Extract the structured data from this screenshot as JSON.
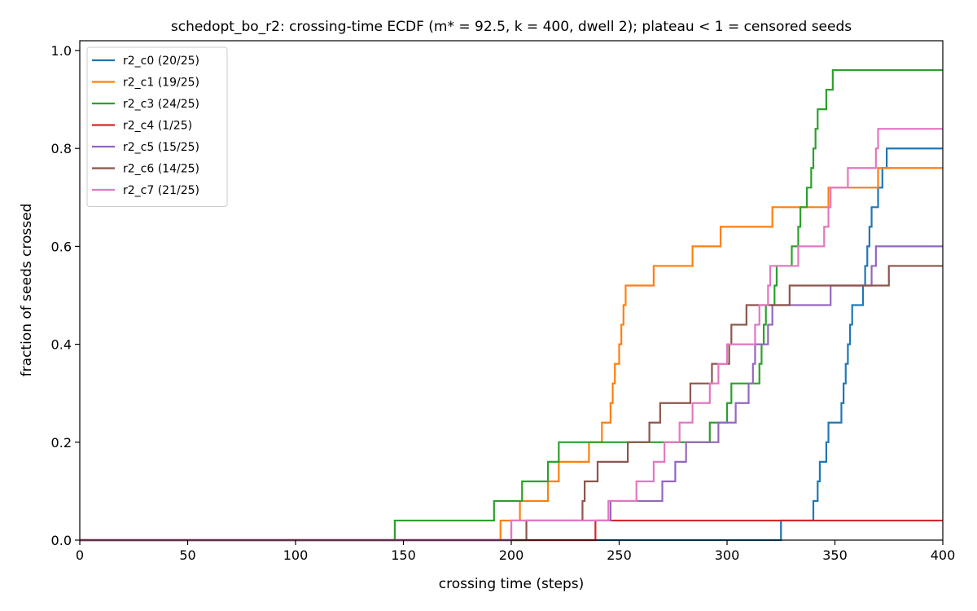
{
  "chart_data": {
    "type": "line",
    "step": true,
    "title": "schedopt_bo_r2: crossing-time ECDF (m* = 92.5, k = 400, dwell 2); plateau < 1 = censored seeds",
    "xlabel": "crossing time (steps)",
    "ylabel": "fraction of seeds crossed",
    "xlim": [
      0,
      400
    ],
    "ylim": [
      0,
      1.02
    ],
    "xticks": [
      0,
      50,
      100,
      150,
      200,
      250,
      300,
      350,
      400
    ],
    "yticks": [
      0.0,
      0.2,
      0.4,
      0.6,
      0.8,
      1.0
    ],
    "xtick_labels": [
      "0",
      "50",
      "100",
      "150",
      "200",
      "250",
      "300",
      "350",
      "400"
    ],
    "ytick_labels": [
      "0.0",
      "0.2",
      "0.4",
      "0.6",
      "0.8",
      "1.0"
    ],
    "grid": false,
    "legend_position": "top-left",
    "series": [
      {
        "name": "r2_c0 (20/25)",
        "color": "#1f77b4",
        "crossing_times": [
          325,
          340,
          342,
          343,
          346,
          347,
          353,
          354,
          355,
          356,
          357,
          358,
          363,
          364,
          365,
          366,
          367,
          370,
          372,
          374
        ]
      },
      {
        "name": "r2_c1 (19/25)",
        "color": "#ff7f0e",
        "crossing_times": [
          195,
          204,
          217,
          222,
          236,
          242,
          246,
          247,
          248,
          250,
          251,
          252,
          253,
          266,
          284,
          297,
          321,
          347,
          370
        ]
      },
      {
        "name": "r2_c3 (24/25)",
        "color": "#2ca02c",
        "crossing_times": [
          146,
          192,
          205,
          217,
          222,
          292,
          300,
          302,
          315,
          316,
          317,
          318,
          322,
          323,
          330,
          333,
          334,
          337,
          339,
          340,
          341,
          342,
          346,
          349
        ]
      },
      {
        "name": "r2_c4 (1/25)",
        "color": "#d62728",
        "crossing_times": [
          239
        ]
      },
      {
        "name": "r2_c5 (15/25)",
        "color": "#9467bd",
        "crossing_times": [
          200,
          246,
          270,
          276,
          281,
          296,
          304,
          310,
          312,
          313,
          319,
          321,
          348,
          367,
          369
        ]
      },
      {
        "name": "r2_c6 (14/25)",
        "color": "#8c564b",
        "crossing_times": [
          207,
          233,
          234,
          240,
          254,
          264,
          269,
          283,
          293,
          301,
          302,
          309,
          329,
          375
        ]
      },
      {
        "name": "r2_c7 (21/25)",
        "color": "#e377c2",
        "crossing_times": [
          200,
          245,
          258,
          266,
          271,
          278,
          284,
          292,
          296,
          300,
          313,
          315,
          319,
          320,
          333,
          345,
          347,
          348,
          356,
          369,
          370
        ]
      }
    ]
  }
}
